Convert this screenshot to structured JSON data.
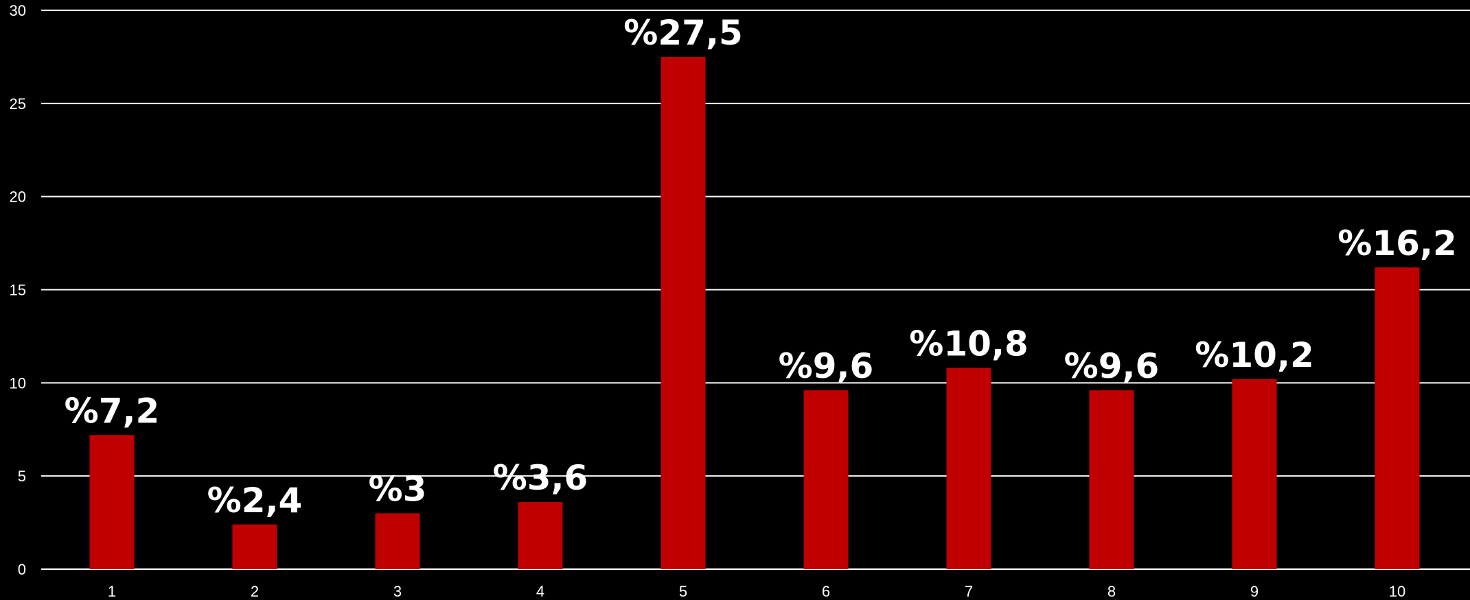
{
  "chart_data": {
    "type": "bar",
    "categories": [
      "1",
      "2",
      "3",
      "4",
      "5",
      "6",
      "7",
      "8",
      "9",
      "10"
    ],
    "values": [
      7.2,
      2.4,
      3,
      3.6,
      27.5,
      9.6,
      10.8,
      9.6,
      10.2,
      16.2
    ],
    "data_labels": [
      "%7,2",
      "%2,4",
      "%3",
      "%3,6",
      "%27,5",
      "%9,6",
      "%10,8",
      "%9,6",
      "%10,2",
      "%16,2"
    ],
    "title": "",
    "xlabel": "",
    "ylabel": "",
    "ylim": [
      0,
      30
    ],
    "yticks": [
      0,
      5,
      10,
      15,
      20,
      25,
      30
    ],
    "grid": true,
    "legend": "none",
    "colors": {
      "background": "#000000",
      "bar": "#c00000",
      "grid": "#ffffff",
      "text": "#ffffff"
    }
  }
}
